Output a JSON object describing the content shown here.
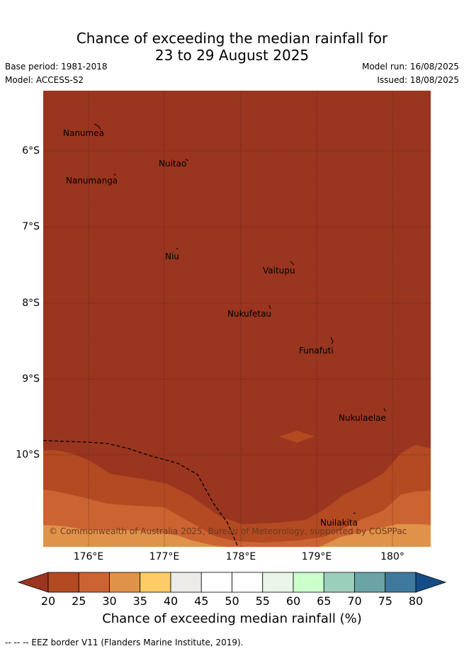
{
  "header": {
    "title_line1": "Chance of exceeding the median rainfall for",
    "title_line2": "23 to 29 August 2025",
    "base_period": "Base period: 1981-2018",
    "model": "Model: ACCESS-S2",
    "model_run": "Model run: 16/08/2025",
    "issued": "Issued: 18/08/2025"
  },
  "map": {
    "lat_labels": [
      "6°S",
      "7°S",
      "8°S",
      "9°S",
      "10°S"
    ],
    "lon_labels": [
      "176°E",
      "177°E",
      "178°E",
      "179°E",
      "180°"
    ],
    "places": [
      "Nanumea",
      "Nuitao",
      "Nanumanga",
      "Niu",
      "Vaitupu",
      "Nukufetau",
      "Funafuti",
      "Nukulaelae",
      "Nuilakita"
    ],
    "copyright": "© Commonwealth of Australia 2025, Bureau of Meteorology, supported by COSPPac",
    "colors": {
      "lt20": "#9a3520",
      "c20_25": "#b34a22",
      "c25_30": "#cc6432",
      "c30_35": "#e09348",
      "c35_40": "#fdcc66"
    }
  },
  "colorbar": {
    "labels": [
      "20",
      "25",
      "30",
      "35",
      "40",
      "45",
      "50",
      "55",
      "60",
      "65",
      "70",
      "75",
      "80"
    ],
    "colors": [
      "#9a3520",
      "#b34a22",
      "#cc6432",
      "#e09348",
      "#fdcc66",
      "#ecebe7",
      "#ffffff",
      "#ffffff",
      "#e9f5e6",
      "#ccffcc",
      "#9ccfbb",
      "#6aa4a6",
      "#3f7a9e",
      "#154c86"
    ],
    "title": "Chance of exceeding median rainfall (%)"
  },
  "footer": {
    "legend": "-- -- -- EEZ border V11 (Flanders Marine Institute, 2019)."
  }
}
